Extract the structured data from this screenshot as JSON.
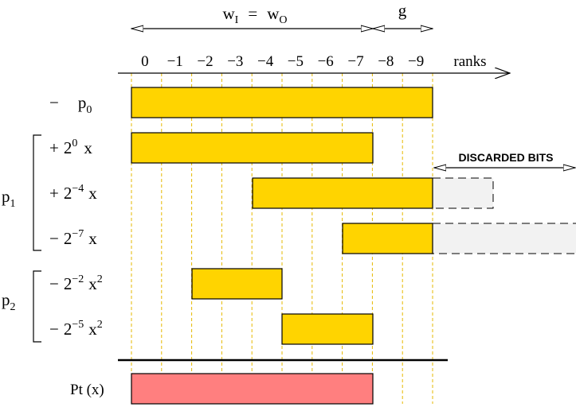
{
  "header": {
    "width_label": {
      "left": "w",
      "left_sub": "I",
      "eq": "=",
      "right": "w",
      "right_sub": "O"
    },
    "guard_label": "g",
    "rank_labels": [
      "0",
      "−1",
      "−2",
      "−3",
      "−4",
      "−5",
      "−6",
      "−7",
      "−8",
      "−9"
    ],
    "ranks_label": "ranks"
  },
  "rows": [
    {
      "id": "p0",
      "sign": "−",
      "coef_base": "",
      "coef_exp": "",
      "var": "p",
      "var_sub": "0",
      "var_exp": ""
    },
    {
      "id": "p1a",
      "sign": "+",
      "coef_base": "2",
      "coef_exp": "0",
      "var": "x",
      "var_sub": "",
      "var_exp": ""
    },
    {
      "id": "p1b",
      "sign": "+",
      "coef_base": "2",
      "coef_exp": "−4",
      "var": "x",
      "var_sub": "",
      "var_exp": ""
    },
    {
      "id": "p1c",
      "sign": "−",
      "coef_base": "2",
      "coef_exp": "−7",
      "var": "x",
      "var_sub": "",
      "var_exp": ""
    },
    {
      "id": "p2a",
      "sign": "−",
      "coef_base": "2",
      "coef_exp": "−2",
      "var": "x",
      "var_sub": "",
      "var_exp": "2"
    },
    {
      "id": "p2b",
      "sign": "−",
      "coef_base": "2",
      "coef_exp": "−5",
      "var": "x",
      "var_sub": "",
      "var_exp": "2"
    }
  ],
  "groups": {
    "p1": {
      "name": "p",
      "sub": "1"
    },
    "p2": {
      "name": "p",
      "sub": "2"
    }
  },
  "discarded_label": "DISCARDED BITS",
  "result": {
    "label": "Pt (x)"
  },
  "colors": {
    "bar_fill": "#ffd400",
    "result_fill": "#ff7f7f",
    "discarded_fill": "#f2f2f2",
    "guide_line": "#e6b800"
  }
}
